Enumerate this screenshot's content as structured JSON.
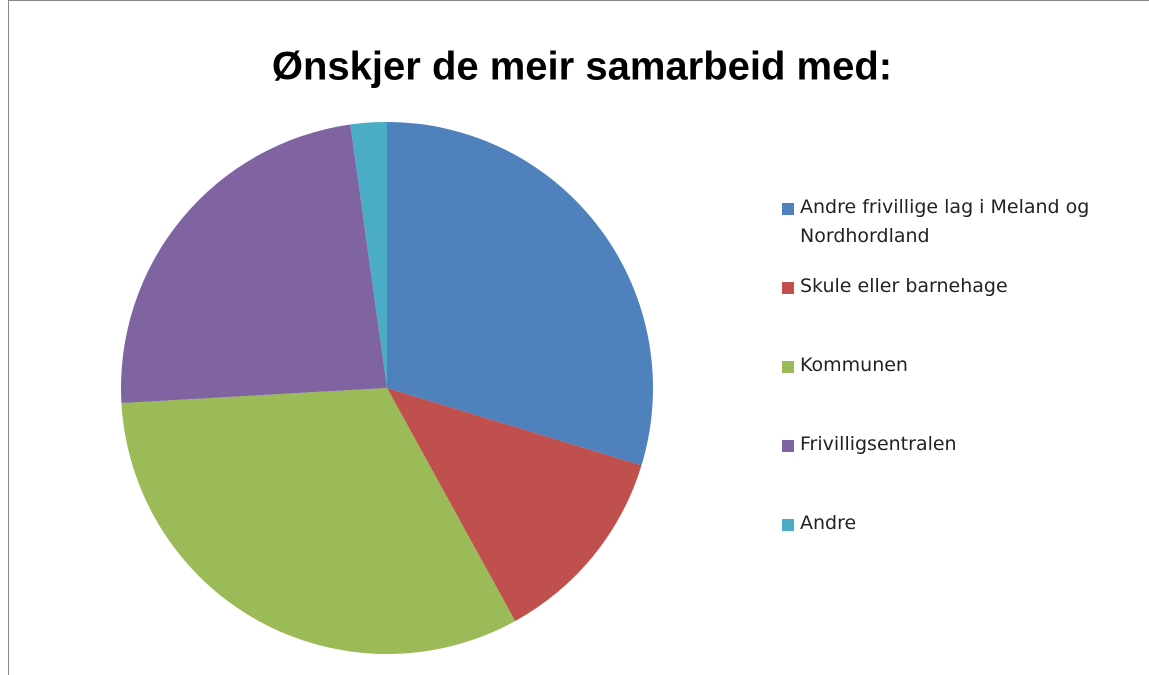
{
  "chart_data": {
    "type": "pie",
    "title": "Ønskjer de meir samarbeid med:",
    "categories": [
      "Andre frivillige lag i Meland og Nordhordland",
      "Skule eller barnehage",
      "Kommunen",
      "Frivilligsentralen",
      "Andre"
    ],
    "values": [
      29.7,
      12.3,
      32.1,
      23.7,
      2.2
    ],
    "colors": [
      "#4f81bd",
      "#c0504d",
      "#9bbb59",
      "#8064a2",
      "#4bacc6"
    ],
    "legend": "right"
  }
}
